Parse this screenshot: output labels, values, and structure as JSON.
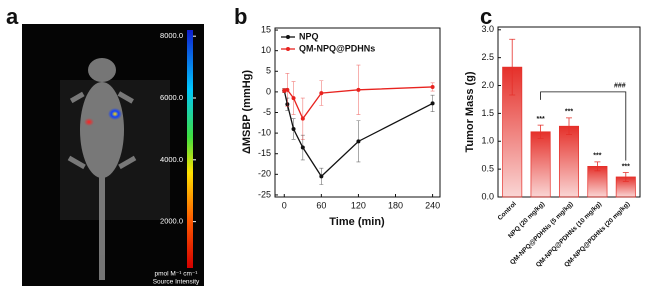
{
  "chart_data": [
    {
      "type": "image",
      "panel_label": "a",
      "colorbar": {
        "clim": [
          500,
          8200
        ],
        "ticks": [
          {
            "value": 8000,
            "label": "8000.0"
          },
          {
            "value": 6000,
            "label": "6000.0"
          },
          {
            "value": 4000,
            "label": "4000.0"
          },
          {
            "value": 2000,
            "label": "2000.0"
          }
        ]
      },
      "unit": "pmol M⁻¹ cm⁻¹",
      "colorbar_label": "Source Intensity"
    },
    {
      "type": "line",
      "panel_label": "b",
      "x_label": "Time (min)",
      "y_label": "ΔMSBP (mmHg)",
      "xlim": [
        -15,
        252
      ],
      "xticks": [
        0,
        60,
        120,
        180,
        240
      ],
      "ylim": [
        -25.5,
        15.5
      ],
      "yticks": [
        -25,
        -20,
        -15,
        -10,
        -5,
        0,
        5,
        10,
        15
      ],
      "legend": "upper left",
      "series": [
        {
          "name": "NPQ",
          "color": "#111111",
          "x": [
            0,
            5,
            15,
            30,
            60,
            120,
            240
          ],
          "values": [
            0.3,
            -3,
            -9,
            -13.5,
            -20.5,
            -12,
            -2.8
          ],
          "errors": [
            0.5,
            1.5,
            2.5,
            3,
            2,
            5,
            2
          ]
        },
        {
          "name": "QM-NPQ@PDHNs",
          "color": "#e8231f",
          "x": [
            0,
            5,
            15,
            30,
            60,
            120,
            240
          ],
          "values": [
            0.3,
            0.5,
            -1.5,
            -6.5,
            -0.3,
            0.5,
            1.2
          ],
          "errors": [
            0.5,
            4,
            4,
            5,
            3,
            6,
            1
          ]
        }
      ]
    },
    {
      "type": "bar",
      "panel_label": "c",
      "y_label": "Tumor Mass (g)",
      "color": "#e5302a",
      "categories": [
        "Control",
        "NPQ (20 mg/kg)",
        "QM-NPQ@PDHNs (5 mg/kg)",
        "QM-NPQ@PDHNs (10 mg/kg)",
        "QM-NPQ@PDHNs (20 mg/kg)"
      ],
      "values": [
        2.33,
        1.17,
        1.27,
        0.55,
        0.36
      ],
      "errors": [
        0.5,
        0.12,
        0.15,
        0.08,
        0.08
      ],
      "significance": [
        null,
        "***",
        "***",
        "***",
        "***"
      ],
      "comparison": {
        "text": "###",
        "from": "NPQ (20 mg/kg)",
        "to": "QM-NPQ@PDHNs (20 mg/kg)"
      },
      "ylim": [
        0,
        3.05
      ],
      "yticks": [
        {
          "value": 0,
          "label": "0.0"
        },
        {
          "value": 0.5,
          "label": "0.5"
        },
        {
          "value": 1,
          "label": "1.0"
        },
        {
          "value": 1.5,
          "label": "1.5"
        },
        {
          "value": 2,
          "label": "2.0"
        },
        {
          "value": 2.5,
          "label": "2.5"
        },
        {
          "value": 3,
          "label": "3.0"
        }
      ]
    }
  ]
}
